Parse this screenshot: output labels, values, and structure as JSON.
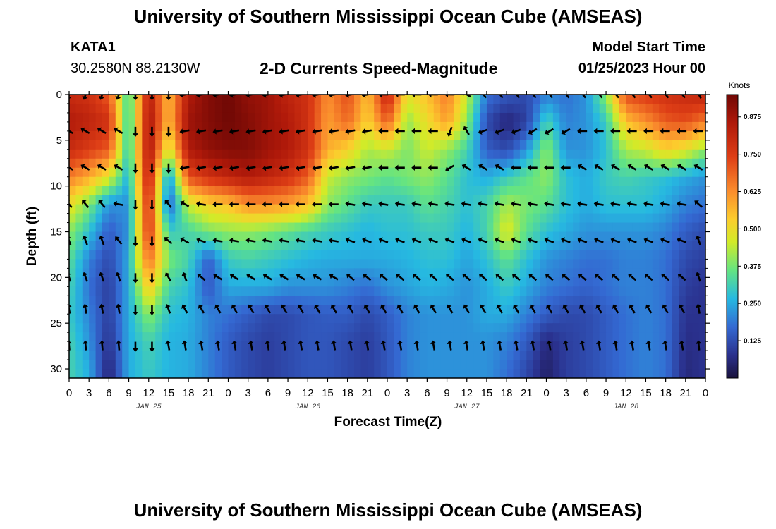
{
  "header": {
    "title": "University of Southern Mississippi Ocean Cube (AMSEAS)",
    "station": "KATA1",
    "coordinates": "30.2580N  88.2130W",
    "subtitle": "2-D Currents Speed-Magnitude",
    "model_start_label": "Model Start Time",
    "model_start_value": "01/25/2023 Hour 00"
  },
  "footer": {
    "title": "University of Southern Mississippi Ocean Cube (AMSEAS)"
  },
  "chart_data": {
    "type": "heatmap",
    "title": "2-D Currents Speed-Magnitude",
    "xlabel": "Forecast Time(Z)",
    "ylabel": "Depth (ft)",
    "x_range_hours": [
      0,
      96
    ],
    "y_range_ft": [
      0,
      31
    ],
    "y_ticks": [
      0,
      5,
      10,
      15,
      20,
      25,
      30
    ],
    "x_tick_labels": [
      "0",
      "3",
      "6",
      "9",
      "12",
      "15",
      "18",
      "21",
      "0",
      "3",
      "6",
      "9",
      "12",
      "15",
      "18",
      "21",
      "0",
      "3",
      "6",
      "9",
      "12",
      "15",
      "18",
      "21",
      "0",
      "3",
      "6",
      "9",
      "12",
      "15",
      "18",
      "21",
      "0"
    ],
    "date_labels": [
      {
        "text": "JAN 25",
        "hour": 12
      },
      {
        "text": "JAN 26",
        "hour": 36
      },
      {
        "text": "JAN 27",
        "hour": 60
      },
      {
        "text": "JAN 28",
        "hour": 84
      }
    ],
    "colorbar": {
      "unit": "Knots",
      "min": 0.0,
      "max": 0.95,
      "ticks": [
        "0.875",
        "0.750",
        "0.625",
        "0.500",
        "0.375",
        "0.250",
        "0.125"
      ],
      "tick_values": [
        0.875,
        0.75,
        0.625,
        0.5,
        0.375,
        0.25,
        0.125
      ]
    },
    "speed_grid": {
      "x_hours": [
        0,
        3,
        6,
        9,
        12,
        15,
        18,
        21,
        24,
        27,
        30,
        33,
        36,
        39,
        42,
        45,
        48,
        51,
        54,
        57,
        60,
        63,
        66,
        69,
        72,
        75,
        78,
        81,
        84,
        87,
        90,
        93,
        96
      ],
      "depths_ft": [
        0,
        3,
        6,
        9,
        12,
        15,
        18,
        21,
        24,
        27,
        30
      ],
      "values": [
        [
          0.8,
          0.78,
          0.7,
          0.3,
          0.85,
          0.55,
          0.85,
          0.92,
          0.95,
          0.9,
          0.88,
          0.82,
          0.78,
          0.62,
          0.72,
          0.55,
          0.82,
          0.48,
          0.55,
          0.65,
          0.45,
          0.18,
          0.14,
          0.12,
          0.2,
          0.18,
          0.22,
          0.4,
          0.72,
          0.75,
          0.78,
          0.8,
          0.82
        ],
        [
          0.85,
          0.82,
          0.78,
          0.28,
          0.88,
          0.55,
          0.88,
          0.92,
          0.95,
          0.92,
          0.88,
          0.85,
          0.78,
          0.6,
          0.68,
          0.52,
          0.7,
          0.4,
          0.5,
          0.6,
          0.4,
          0.12,
          0.05,
          0.1,
          0.32,
          0.2,
          0.22,
          0.3,
          0.55,
          0.62,
          0.7,
          0.72,
          0.65
        ],
        [
          0.8,
          0.75,
          0.7,
          0.28,
          0.88,
          0.45,
          0.85,
          0.9,
          0.92,
          0.92,
          0.88,
          0.85,
          0.78,
          0.58,
          0.52,
          0.42,
          0.45,
          0.38,
          0.45,
          0.4,
          0.32,
          0.15,
          0.12,
          0.22,
          0.4,
          0.22,
          0.22,
          0.28,
          0.42,
          0.45,
          0.52,
          0.48,
          0.4
        ],
        [
          0.65,
          0.58,
          0.48,
          0.25,
          0.85,
          0.2,
          0.72,
          0.78,
          0.82,
          0.85,
          0.82,
          0.78,
          0.7,
          0.45,
          0.4,
          0.38,
          0.35,
          0.38,
          0.4,
          0.35,
          0.28,
          0.25,
          0.3,
          0.35,
          0.4,
          0.28,
          0.25,
          0.3,
          0.32,
          0.3,
          0.28,
          0.25,
          0.22
        ],
        [
          0.5,
          0.38,
          0.22,
          0.22,
          0.8,
          0.15,
          0.45,
          0.52,
          0.55,
          0.62,
          0.62,
          0.6,
          0.55,
          0.4,
          0.35,
          0.3,
          0.3,
          0.3,
          0.35,
          0.32,
          0.28,
          0.32,
          0.42,
          0.38,
          0.35,
          0.28,
          0.25,
          0.28,
          0.28,
          0.28,
          0.25,
          0.2,
          0.18
        ],
        [
          0.4,
          0.28,
          0.15,
          0.22,
          0.78,
          0.3,
          0.32,
          0.38,
          0.4,
          0.4,
          0.38,
          0.35,
          0.32,
          0.3,
          0.28,
          0.26,
          0.28,
          0.28,
          0.3,
          0.3,
          0.26,
          0.32,
          0.48,
          0.35,
          0.28,
          0.25,
          0.22,
          0.22,
          0.22,
          0.22,
          0.2,
          0.15,
          0.12
        ],
        [
          0.35,
          0.2,
          0.12,
          0.25,
          0.68,
          0.38,
          0.32,
          0.15,
          0.3,
          0.32,
          0.3,
          0.28,
          0.26,
          0.25,
          0.25,
          0.25,
          0.25,
          0.26,
          0.28,
          0.28,
          0.24,
          0.28,
          0.35,
          0.28,
          0.22,
          0.2,
          0.18,
          0.18,
          0.2,
          0.2,
          0.18,
          0.12,
          0.1
        ],
        [
          0.32,
          0.18,
          0.1,
          0.25,
          0.55,
          0.32,
          0.28,
          0.14,
          0.25,
          0.25,
          0.25,
          0.22,
          0.22,
          0.22,
          0.2,
          0.18,
          0.22,
          0.24,
          0.26,
          0.25,
          0.22,
          0.25,
          0.3,
          0.25,
          0.2,
          0.18,
          0.16,
          0.18,
          0.2,
          0.2,
          0.18,
          0.1,
          0.08
        ],
        [
          0.3,
          0.2,
          0.1,
          0.25,
          0.4,
          0.28,
          0.26,
          0.2,
          0.18,
          0.15,
          0.12,
          0.12,
          0.14,
          0.15,
          0.15,
          0.12,
          0.15,
          0.2,
          0.22,
          0.22,
          0.22,
          0.25,
          0.25,
          0.2,
          0.15,
          0.12,
          0.12,
          0.15,
          0.18,
          0.2,
          0.18,
          0.08,
          0.08
        ],
        [
          0.32,
          0.22,
          0.08,
          0.25,
          0.32,
          0.26,
          0.25,
          0.2,
          0.15,
          0.12,
          0.1,
          0.12,
          0.14,
          0.14,
          0.12,
          0.1,
          0.14,
          0.2,
          0.22,
          0.22,
          0.22,
          0.22,
          0.2,
          0.15,
          0.06,
          0.1,
          0.12,
          0.15,
          0.18,
          0.2,
          0.18,
          0.07,
          0.08
        ],
        [
          0.32,
          0.25,
          0.05,
          0.25,
          0.3,
          0.26,
          0.25,
          0.2,
          0.15,
          0.12,
          0.1,
          0.12,
          0.14,
          0.14,
          0.12,
          0.1,
          0.14,
          0.2,
          0.22,
          0.22,
          0.22,
          0.22,
          0.18,
          0.12,
          0.04,
          0.1,
          0.12,
          0.15,
          0.18,
          0.2,
          0.18,
          0.06,
          0.08
        ]
      ]
    },
    "vectors": {
      "x_hours": [
        0,
        2.5,
        5,
        7.5,
        10,
        12.5,
        15,
        17.5,
        20,
        22.5,
        25,
        27.5,
        30,
        32.5,
        35,
        37.5,
        40,
        42.5,
        45,
        47.5,
        50,
        52.5,
        55,
        57.5,
        60,
        62.5,
        65,
        67.5,
        70,
        72.5,
        75,
        77.5,
        80,
        82.5,
        85,
        87.5,
        90,
        92.5,
        95
      ],
      "depths_ft": [
        0,
        4,
        8,
        12,
        16,
        20,
        23.5,
        27.5
      ],
      "direction_deg_rows": [
        [
          200,
          200,
          200,
          200,
          180,
          180,
          180,
          260,
          260,
          260,
          260,
          260,
          260,
          260,
          260,
          260,
          260,
          260,
          260,
          270,
          270,
          270,
          270,
          270,
          300,
          320,
          320,
          320,
          320,
          320,
          320,
          320,
          320,
          320,
          320,
          320,
          320,
          320,
          330
        ],
        [
          300,
          300,
          300,
          300,
          180,
          180,
          180,
          260,
          260,
          260,
          260,
          260,
          260,
          260,
          260,
          260,
          260,
          260,
          260,
          270,
          270,
          270,
          270,
          200,
          330,
          250,
          250,
          250,
          240,
          240,
          240,
          270,
          270,
          270,
          270,
          270,
          270,
          270,
          270
        ],
        [
          300,
          300,
          300,
          300,
          180,
          180,
          180,
          260,
          260,
          260,
          260,
          260,
          260,
          260,
          260,
          260,
          260,
          260,
          260,
          270,
          270,
          270,
          270,
          240,
          300,
          300,
          300,
          270,
          270,
          270,
          270,
          300,
          300,
          300,
          300,
          300,
          300,
          300,
          300
        ],
        [
          320,
          320,
          320,
          280,
          180,
          180,
          320,
          300,
          280,
          270,
          270,
          270,
          270,
          270,
          270,
          270,
          270,
          280,
          280,
          280,
          280,
          280,
          280,
          280,
          280,
          280,
          280,
          280,
          280,
          280,
          280,
          280,
          280,
          280,
          280,
          280,
          280,
          280,
          310
        ],
        [
          340,
          340,
          340,
          320,
          180,
          180,
          310,
          300,
          290,
          280,
          280,
          280,
          280,
          280,
          280,
          280,
          280,
          290,
          290,
          290,
          290,
          290,
          290,
          290,
          290,
          290,
          290,
          290,
          290,
          290,
          290,
          290,
          290,
          290,
          290,
          290,
          290,
          290,
          340
        ],
        [
          340,
          340,
          340,
          340,
          180,
          180,
          330,
          340,
          310,
          300,
          300,
          300,
          300,
          300,
          300,
          300,
          300,
          310,
          310,
          310,
          310,
          310,
          310,
          310,
          310,
          310,
          310,
          310,
          310,
          310,
          310,
          310,
          310,
          310,
          310,
          310,
          310,
          310,
          340
        ],
        [
          350,
          350,
          350,
          350,
          180,
          180,
          340,
          330,
          330,
          330,
          330,
          330,
          330,
          330,
          330,
          330,
          330,
          330,
          330,
          330,
          330,
          330,
          330,
          330,
          330,
          330,
          330,
          330,
          330,
          330,
          330,
          330,
          330,
          330,
          330,
          330,
          330,
          330,
          350
        ],
        [
          355,
          355,
          355,
          355,
          180,
          180,
          350,
          350,
          350,
          350,
          350,
          350,
          350,
          350,
          350,
          350,
          350,
          350,
          350,
          350,
          350,
          350,
          350,
          350,
          350,
          350,
          350,
          350,
          350,
          350,
          350,
          350,
          350,
          350,
          350,
          350,
          350,
          350,
          355
        ]
      ]
    }
  }
}
